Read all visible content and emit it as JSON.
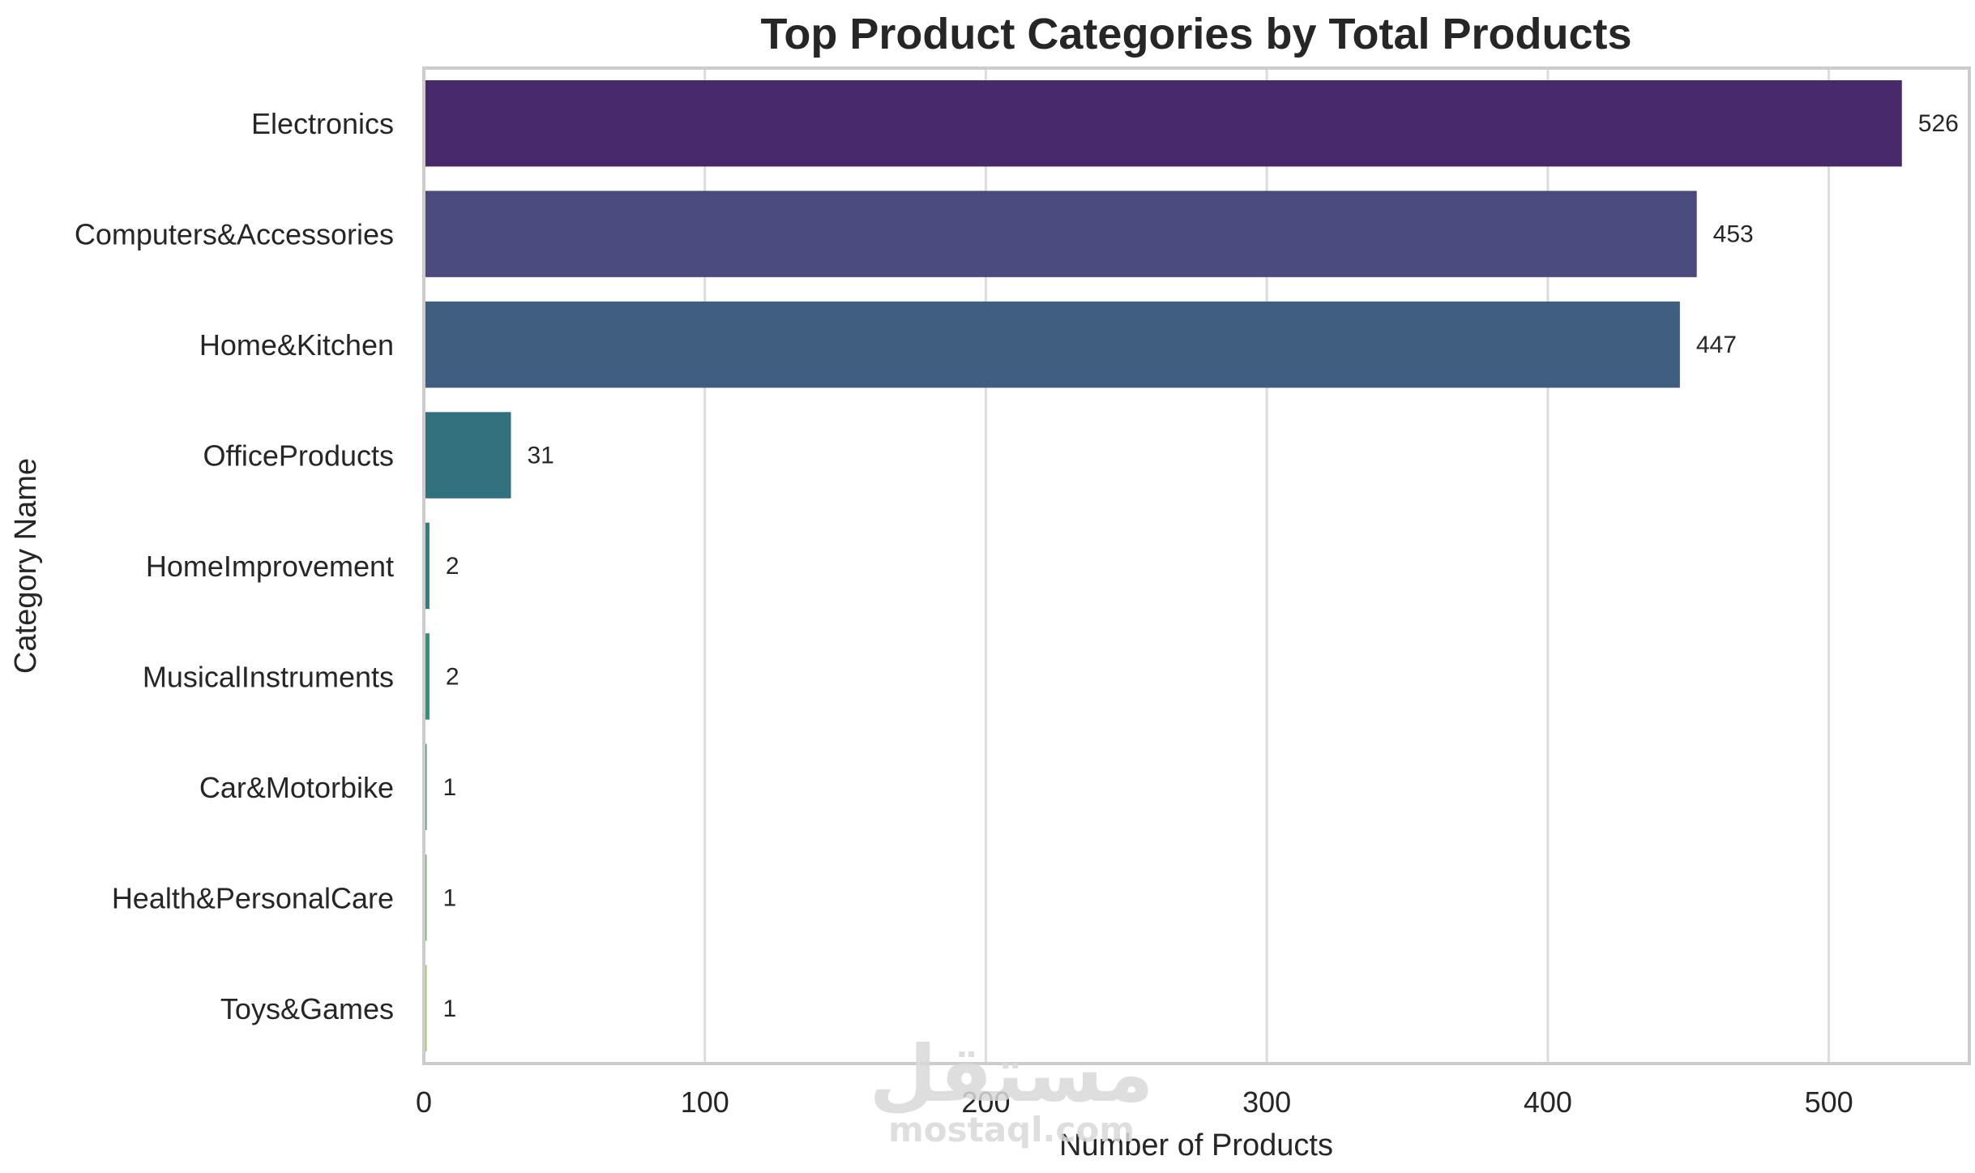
{
  "chart_data": {
    "type": "bar",
    "orientation": "horizontal",
    "title": "Top Product Categories by Total Products",
    "xlabel": "Number of Products",
    "ylabel": "Category Name",
    "xlim": [
      0,
      550
    ],
    "xticks": [
      0,
      100,
      200,
      300,
      400,
      500
    ],
    "xtick_labels": [
      "0",
      "100",
      "200",
      "300",
      "400",
      "500"
    ],
    "grid": true,
    "categories": [
      "Electronics",
      "Computers&Accessories",
      "Home&Kitchen",
      "OfficeProducts",
      "HomeImprovement",
      "MusicalInstruments",
      "Car&Motorbike",
      "Health&PersonalCare",
      "Toys&Games"
    ],
    "values": [
      526,
      453,
      447,
      31,
      2,
      2,
      1,
      1,
      1
    ],
    "value_labels": [
      "526",
      "453",
      "447",
      "31",
      "2",
      "2",
      "1",
      "1",
      "1"
    ],
    "colors": [
      "#482a6b",
      "#4a4a7e",
      "#405e80",
      "#33707e",
      "#2f807f",
      "#2e927b",
      "#3ba272",
      "#67b95c",
      "#9fcd3f"
    ]
  },
  "watermark": {
    "arabic": "مستقل",
    "latin": "mostaql.com"
  }
}
